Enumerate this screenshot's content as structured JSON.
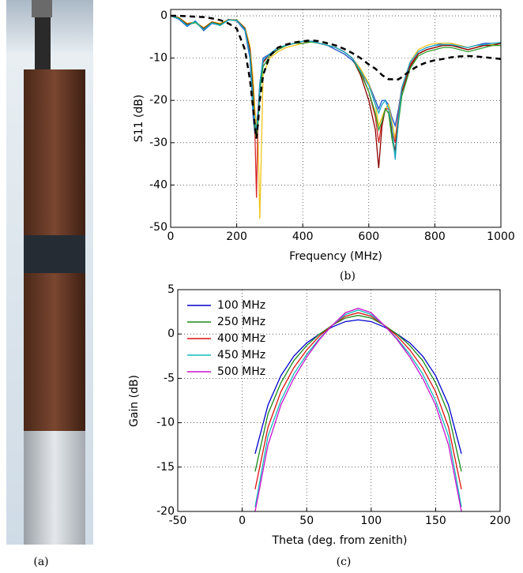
{
  "photo": {
    "caption": "(a)"
  },
  "chart_data": [
    {
      "type": "line",
      "caption": "(b)",
      "xlabel": "Frequency (MHz)",
      "ylabel": "S11 (dB)",
      "x": [
        0,
        25,
        50,
        75,
        100,
        125,
        150,
        175,
        200,
        225,
        240,
        250,
        255,
        260,
        265,
        270,
        280,
        300,
        325,
        350,
        375,
        400,
        425,
        450,
        475,
        500,
        525,
        550,
        575,
        600,
        620,
        630,
        640,
        650,
        660,
        670,
        680,
        690,
        700,
        725,
        750,
        775,
        800,
        825,
        850,
        875,
        900,
        925,
        950,
        975,
        1000
      ],
      "series": [
        {
          "color": "#1f4fd0",
          "values": [
            0,
            -0.8,
            -2.5,
            -1.2,
            -3.5,
            -1.8,
            -2.2,
            -0.8,
            -1.2,
            -3.5,
            -10,
            -24,
            -28,
            -26,
            -22,
            -16,
            -10,
            -9,
            -7.5,
            -7,
            -6.5,
            -6,
            -6,
            -6.5,
            -7,
            -8,
            -9,
            -10.5,
            -13,
            -16,
            -20,
            -22,
            -20,
            -20,
            -21,
            -24,
            -26,
            -22,
            -17,
            -11,
            -8.5,
            -7.5,
            -7,
            -6.5,
            -6.5,
            -7,
            -7.5,
            -7,
            -6.5,
            -6.5,
            -6.5
          ]
        },
        {
          "color": "#f0c419",
          "values": [
            0,
            -0.4,
            -1.8,
            -1.4,
            -2.8,
            -1.4,
            -1.8,
            -0.9,
            -0.9,
            -2.8,
            -7,
            -15,
            -22,
            -26,
            -30,
            -48,
            -14,
            -10,
            -8.5,
            -7.5,
            -7,
            -6.5,
            -6.2,
            -6.5,
            -7,
            -7.5,
            -8.5,
            -10,
            -12.5,
            -16,
            -21,
            -26,
            -24,
            -22,
            -21,
            -25,
            -29,
            -23,
            -17,
            -11,
            -8,
            -7,
            -6.5,
            -6.5,
            -6.5,
            -7,
            -7.5,
            -7,
            -7,
            -6.8,
            -6.5
          ]
        },
        {
          "color": "#d62728",
          "values": [
            0,
            -0.5,
            -2,
            -1.5,
            -3,
            -1.5,
            -2,
            -1,
            -1,
            -3,
            -8,
            -19,
            -27,
            -43,
            -22,
            -16,
            -11,
            -9,
            -8,
            -7,
            -6.5,
            -6.5,
            -6,
            -6.5,
            -7,
            -7.5,
            -8.5,
            -10,
            -13,
            -18,
            -24,
            -30,
            -25,
            -22,
            -22,
            -27,
            -30,
            -23,
            -17,
            -11.5,
            -9,
            -8,
            -7.5,
            -7,
            -7,
            -7.5,
            -8,
            -7.5,
            -7,
            -7,
            -6.5
          ]
        },
        {
          "color": "#8b0000",
          "values": [
            0,
            -0.5,
            -2,
            -1.5,
            -3,
            -1.5,
            -2,
            -1,
            -1,
            -3,
            -8,
            -18,
            -26,
            -29,
            -24,
            -17,
            -11,
            -9,
            -8,
            -7,
            -6.5,
            -6.5,
            -6,
            -6.5,
            -7,
            -7.5,
            -8.5,
            -10,
            -14,
            -20,
            -27,
            -36,
            -26,
            -22,
            -23,
            -28,
            -32,
            -24,
            -18,
            -12,
            -9,
            -8,
            -7.5,
            -7,
            -7,
            -7.5,
            -8,
            -7.5,
            -7,
            -7,
            -6.5
          ]
        },
        {
          "color": "#2ca02c",
          "values": [
            0,
            -0.6,
            -2.2,
            -1.6,
            -3.2,
            -1.6,
            -2.1,
            -1,
            -1.1,
            -3.2,
            -9,
            -20,
            -27,
            -29,
            -25,
            -18,
            -12,
            -9.5,
            -8,
            -7,
            -6.5,
            -6.5,
            -6.2,
            -6.5,
            -7,
            -7.5,
            -8.5,
            -10,
            -13.5,
            -18,
            -23,
            -27,
            -25,
            -22,
            -23,
            -29,
            -33,
            -25,
            -19,
            -12.5,
            -9.5,
            -8.5,
            -8,
            -7.5,
            -7.5,
            -8,
            -8.5,
            -8,
            -7.5,
            -7,
            -7
          ]
        },
        {
          "color": "#17a8c8",
          "values": [
            0,
            -0.7,
            -2.3,
            -1.3,
            -3.3,
            -1.7,
            -2.3,
            -1,
            -1,
            -3.3,
            -9,
            -22,
            -25,
            -27,
            -23,
            -16,
            -10.5,
            -9,
            -7.5,
            -7,
            -6.5,
            -6,
            -6,
            -6.5,
            -7,
            -7.5,
            -8.5,
            -10,
            -13,
            -16.5,
            -21,
            -23,
            -21,
            -20,
            -22,
            -26,
            -34,
            -24,
            -17,
            -11,
            -8.5,
            -7.5,
            -7,
            -6.8,
            -6.8,
            -7.2,
            -7.5,
            -7,
            -6.8,
            -6.5,
            -6.3
          ]
        },
        {
          "color": "#000000",
          "linestyle": "dashed",
          "values": [
            0,
            0,
            -0.1,
            -0.2,
            -0.3,
            -0.6,
            -1,
            -1.8,
            -3,
            -8,
            -15,
            -22,
            -26,
            -29,
            -25,
            -20,
            -14,
            -9.5,
            -7.5,
            -6.8,
            -6.3,
            -6,
            -5.8,
            -6,
            -6.5,
            -7,
            -7.8,
            -8.8,
            -10,
            -11.5,
            -12.5,
            -13.2,
            -14,
            -14.5,
            -15,
            -15,
            -15.2,
            -15,
            -14.5,
            -13,
            -11.8,
            -11,
            -10.5,
            -10.2,
            -9.8,
            -9.6,
            -9.5,
            -9.6,
            -9.8,
            -10,
            -10.2
          ]
        }
      ],
      "xlim": [
        0,
        1000
      ],
      "xticks": [
        0,
        200,
        400,
        600,
        800,
        1000
      ],
      "ylim": [
        -50,
        1.5
      ],
      "yticks": [
        -50,
        -40,
        -30,
        -20,
        -10,
        0
      ],
      "grid": true
    },
    {
      "type": "line",
      "caption": "(c)",
      "xlabel": "Theta (deg. from zenith)",
      "ylabel": "Gain (dB)",
      "x": [
        10,
        20,
        30,
        40,
        50,
        60,
        70,
        80,
        90,
        100,
        110,
        120,
        130,
        140,
        150,
        160,
        170
      ],
      "series": [
        {
          "name": "100 MHz",
          "color": "#0000cc",
          "values": [
            -13.5,
            -8,
            -4.7,
            -2.5,
            -1,
            0,
            0.8,
            1.4,
            1.6,
            1.4,
            0.8,
            0,
            -1,
            -2.5,
            -4.7,
            -8,
            -13.5
          ]
        },
        {
          "name": "250 MHz",
          "color": "#1a8a1a",
          "values": [
            -15.5,
            -9,
            -5.5,
            -3,
            -1.3,
            0,
            1,
            1.8,
            2.1,
            1.8,
            1,
            0,
            -1.3,
            -3,
            -5.5,
            -9,
            -15.5
          ]
        },
        {
          "name": "400 MHz",
          "color": "#dd1111",
          "values": [
            -17.5,
            -10.5,
            -6.5,
            -3.8,
            -1.8,
            -0.2,
            1,
            2,
            2.4,
            2,
            1,
            -0.2,
            -1.8,
            -3.8,
            -6.5,
            -10.5,
            -17.5
          ]
        },
        {
          "name": "450 MHz",
          "color": "#11bbbb",
          "values": [
            -19.5,
            -11.5,
            -7.5,
            -4.5,
            -2.3,
            -0.5,
            1,
            2.2,
            2.7,
            2.2,
            1,
            -0.5,
            -2.3,
            -4.5,
            -7.5,
            -11.5,
            -19.5
          ]
        },
        {
          "name": "500 MHz",
          "color": "#cc11cc",
          "values": [
            -20,
            -12.5,
            -8,
            -5,
            -2.6,
            -0.6,
            1,
            2.4,
            2.9,
            2.4,
            1,
            -0.6,
            -2.6,
            -5,
            -8,
            -12.5,
            -20
          ]
        }
      ],
      "xlim": [
        -50,
        200
      ],
      "xticks": [
        -50,
        0,
        50,
        100,
        150,
        200
      ],
      "ylim": [
        -20,
        5
      ],
      "yticks": [
        -20,
        -15,
        -10,
        -5,
        0,
        5
      ],
      "grid": true,
      "legend": "upper left"
    }
  ]
}
